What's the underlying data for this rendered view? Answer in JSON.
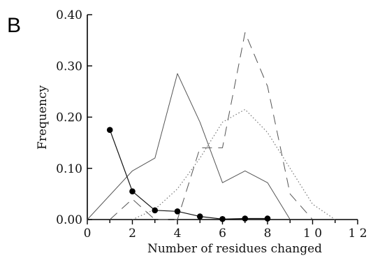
{
  "panel_label": "B",
  "chart_data": {
    "type": "line",
    "xlabel": "Number of residues changed",
    "ylabel": "Frequency",
    "xlim": [
      0,
      12
    ],
    "ylim": [
      0,
      0.4
    ],
    "xticks": [
      0,
      2,
      4,
      6,
      8,
      10,
      12
    ],
    "xtick_labels": [
      "0",
      "2",
      "4",
      "6",
      "8",
      "1 0",
      "1 2"
    ],
    "yticks": [
      0,
      0.1,
      0.2,
      0.3,
      0.4
    ],
    "ytick_labels": [
      "0.00",
      "0.10",
      "0.20",
      "0.30",
      "0.40"
    ],
    "grid": false,
    "series": [
      {
        "style": "solid-thin",
        "color": "#555555",
        "x": [
          0,
          2,
          3,
          4,
          5,
          6,
          7,
          8,
          9
        ],
        "y": [
          0.0,
          0.095,
          0.12,
          0.285,
          0.19,
          0.072,
          0.095,
          0.072,
          0.0
        ]
      },
      {
        "style": "dotted",
        "color": "#777777",
        "x": [
          2,
          3,
          4,
          5,
          6,
          7,
          8,
          9,
          10,
          11
        ],
        "y": [
          0.0,
          0.02,
          0.06,
          0.12,
          0.19,
          0.215,
          0.17,
          0.1,
          0.03,
          0.0
        ]
      },
      {
        "style": "dashed",
        "color": "#555555",
        "x": [
          1,
          2,
          3,
          4,
          5,
          6,
          7,
          8,
          9,
          10
        ],
        "y": [
          0.0,
          0.04,
          0.0,
          0.0,
          0.14,
          0.14,
          0.365,
          0.26,
          0.05,
          0.0
        ]
      },
      {
        "style": "solid-markers",
        "color": "#111111",
        "x": [
          1,
          2,
          3,
          4,
          5,
          6,
          7,
          8
        ],
        "y": [
          0.175,
          0.055,
          0.018,
          0.016,
          0.006,
          0.001,
          0.002,
          0.002
        ]
      }
    ]
  }
}
